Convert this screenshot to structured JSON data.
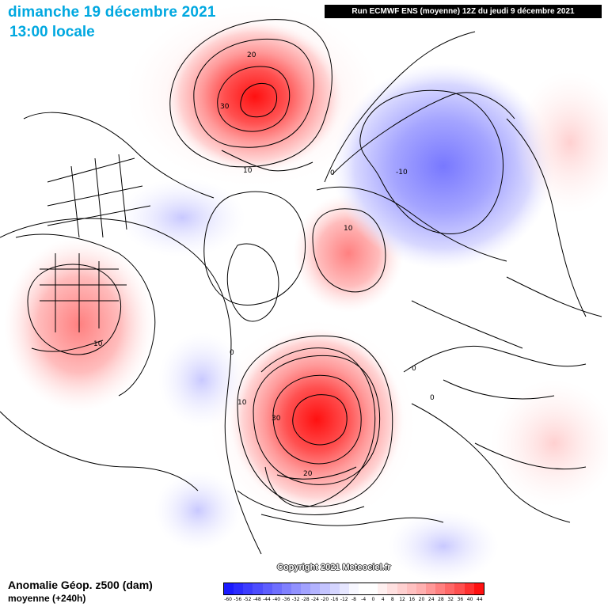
{
  "header": {
    "date": "dimanche 19 décembre 2021",
    "time": "13:00 locale",
    "run": "Run ECMWF ENS (moyenne) 12Z du jeudi 9 décembre 2021"
  },
  "footer": {
    "title": "Anomalie Géop. z500 (dam)",
    "subtitle": "moyenne  (+240h)",
    "copyright": "Copyright 2021 Meteociel.fr"
  },
  "contour_labels": [
    "20",
    "30",
    "10",
    "0",
    "-10",
    "10",
    "10",
    "0",
    "0",
    "0",
    "10",
    "30",
    "20"
  ],
  "legend": {
    "labels": [
      "-60",
      "-56",
      "-52",
      "-48",
      "-44",
      "-40",
      "-36",
      "-32",
      "-28",
      "-24",
      "-20",
      "-16",
      "-12",
      "-8",
      "-4",
      "0",
      "4",
      "8",
      "12",
      "16",
      "20",
      "24",
      "28",
      "32",
      "36",
      "40",
      "44"
    ],
    "colors": [
      "#1a1aff",
      "#2b2bff",
      "#3c3cff",
      "#4d4dff",
      "#5e5eff",
      "#6f6fff",
      "#8080ff",
      "#9191ff",
      "#a2a2ff",
      "#b3b3ff",
      "#c4c4ff",
      "#d5d5ff",
      "#e6e6ff",
      "#f7f7ff",
      "#ffffff",
      "#ffffff",
      "#fff0f0",
      "#ffe0e0",
      "#ffd0d0",
      "#ffc0c0",
      "#ffb0b0",
      "#ff9898",
      "#ff8080",
      "#ff6868",
      "#ff5050",
      "#ff3030",
      "#ff1010"
    ]
  },
  "colors": {
    "title": "#00a8e0",
    "positive": "#ff2020",
    "negative": "#5050ff"
  }
}
